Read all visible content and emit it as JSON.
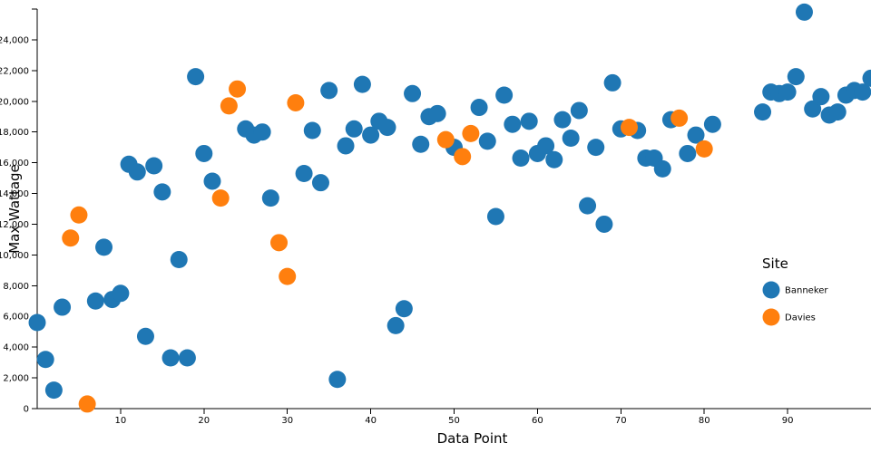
{
  "chart_data": {
    "type": "scatter",
    "xlabel": "Data Point",
    "ylabel": "Max Wattage",
    "xlim": [
      0,
      100
    ],
    "ylim": [
      0,
      26000
    ],
    "x_ticks": [
      10,
      20,
      30,
      40,
      50,
      60,
      70,
      80,
      90
    ],
    "y_ticks": [
      0,
      2000,
      4000,
      6000,
      8000,
      10000,
      12000,
      14000,
      16000,
      18000,
      20000,
      22000,
      24000
    ],
    "y_tick_labels": [
      "0",
      "2,000",
      "4,000",
      "6,000",
      "8,000",
      "10,000",
      "12,000",
      "14,000",
      "16,000",
      "18,000",
      "20,000",
      "22,000",
      "24,000"
    ],
    "legend": {
      "title": "Site",
      "position": "right"
    },
    "series": [
      {
        "name": "Banneker",
        "color": "#1f77b4",
        "points": [
          [
            0,
            5600
          ],
          [
            1,
            3200
          ],
          [
            2,
            1200
          ],
          [
            3,
            6600
          ],
          [
            7,
            7000
          ],
          [
            8,
            10500
          ],
          [
            9,
            7100
          ],
          [
            10,
            7500
          ],
          [
            11,
            15900
          ],
          [
            12,
            15400
          ],
          [
            13,
            4700
          ],
          [
            14,
            15800
          ],
          [
            15,
            14100
          ],
          [
            16,
            3300
          ],
          [
            17,
            9700
          ],
          [
            18,
            3300
          ],
          [
            19,
            21600
          ],
          [
            20,
            16600
          ],
          [
            21,
            14800
          ],
          [
            25,
            18200
          ],
          [
            26,
            17800
          ],
          [
            27,
            18000
          ],
          [
            28,
            13700
          ],
          [
            32,
            15300
          ],
          [
            33,
            18100
          ],
          [
            34,
            14700
          ],
          [
            35,
            20700
          ],
          [
            36,
            1900
          ],
          [
            37,
            17100
          ],
          [
            38,
            18200
          ],
          [
            39,
            21100
          ],
          [
            40,
            17800
          ],
          [
            41,
            18700
          ],
          [
            42,
            18300
          ],
          [
            43,
            5400
          ],
          [
            44,
            6500
          ],
          [
            45,
            20500
          ],
          [
            46,
            17200
          ],
          [
            47,
            19000
          ],
          [
            48,
            19200
          ],
          [
            50,
            17000
          ],
          [
            53,
            19600
          ],
          [
            54,
            17400
          ],
          [
            55,
            12500
          ],
          [
            56,
            20400
          ],
          [
            57,
            18500
          ],
          [
            58,
            16300
          ],
          [
            59,
            18700
          ],
          [
            60,
            16600
          ],
          [
            61,
            17100
          ],
          [
            62,
            16200
          ],
          [
            63,
            18800
          ],
          [
            64,
            17600
          ],
          [
            65,
            19400
          ],
          [
            66,
            13200
          ],
          [
            67,
            17000
          ],
          [
            68,
            12000
          ],
          [
            69,
            21200
          ],
          [
            70,
            18200
          ],
          [
            72,
            18100
          ],
          [
            73,
            16300
          ],
          [
            74,
            16300
          ],
          [
            75,
            15600
          ],
          [
            76,
            18800
          ],
          [
            78,
            16600
          ],
          [
            79,
            17800
          ],
          [
            81,
            18500
          ],
          [
            87,
            19300
          ],
          [
            88,
            20600
          ],
          [
            89,
            20500
          ],
          [
            90,
            20600
          ],
          [
            91,
            21600
          ],
          [
            92,
            25800
          ],
          [
            93,
            19500
          ],
          [
            94,
            20300
          ],
          [
            95,
            19100
          ],
          [
            96,
            19300
          ],
          [
            97,
            20400
          ],
          [
            98,
            20700
          ],
          [
            99,
            20600
          ],
          [
            100,
            21500
          ]
        ]
      },
      {
        "name": "Davies",
        "color": "#ff7f0e",
        "points": [
          [
            4,
            11100
          ],
          [
            5,
            12600
          ],
          [
            6,
            300
          ],
          [
            22,
            13700
          ],
          [
            23,
            19700
          ],
          [
            24,
            20800
          ],
          [
            29,
            10800
          ],
          [
            30,
            8600
          ],
          [
            31,
            19900
          ],
          [
            49,
            17500
          ],
          [
            51,
            16400
          ],
          [
            52,
            17900
          ],
          [
            71,
            18300
          ],
          [
            77,
            18900
          ],
          [
            80,
            16900
          ]
        ]
      }
    ]
  }
}
